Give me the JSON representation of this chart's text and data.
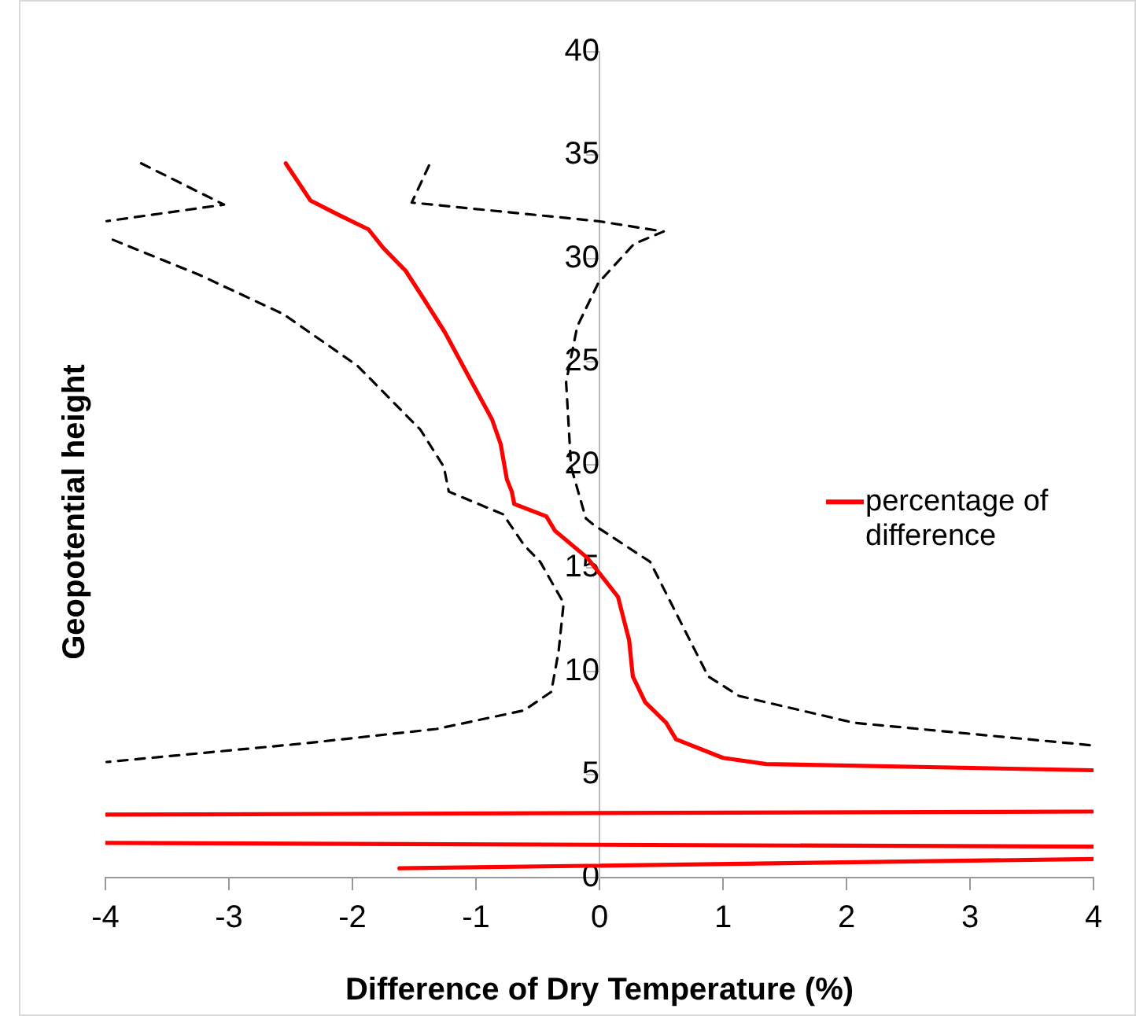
{
  "chart_data": {
    "type": "line",
    "xlabel": "Difference of Dry Temperature (%)",
    "ylabel": "Geopotential height",
    "xlim": [
      -4,
      4
    ],
    "xticks": [
      -4,
      -3,
      -2,
      -1,
      0,
      1,
      2,
      3,
      4
    ],
    "ylim": [
      0,
      40
    ],
    "yticks": [
      0,
      5,
      10,
      15,
      20,
      25,
      30,
      35,
      40
    ],
    "grid": false,
    "legend": "right",
    "marker": "none",
    "series": [
      {
        "name": "percentage of difference",
        "color": "#ff0000",
        "line_style": "solid",
        "x": [
          -2.54,
          -2.34,
          -2.11,
          -1.87,
          -1.75,
          -1.57,
          -1.44,
          -1.25,
          -1.07,
          -0.87,
          -0.8,
          -0.75,
          -0.71,
          -0.69,
          -0.43,
          -0.36,
          -0.1,
          0.15,
          0.24,
          0.27,
          0.37,
          0.54,
          0.62,
          1.0,
          1.35,
          4.0
        ],
        "values": [
          34.6,
          32.8,
          32.1,
          31.4,
          30.5,
          29.4,
          28.2,
          26.4,
          24.4,
          22.2,
          21.0,
          19.3,
          18.7,
          18.1,
          17.5,
          16.8,
          15.5,
          13.6,
          11.5,
          9.75,
          8.5,
          7.5,
          6.7,
          5.8,
          5.5,
          5.2
        ]
      },
      {
        "color": "#ff0000",
        "line_style": "solid",
        "x": [
          -4.0,
          4.0
        ],
        "values": [
          3.05,
          3.2
        ]
      },
      {
        "color": "#ff0000",
        "line_style": "solid",
        "x": [
          -4.0,
          4.0
        ],
        "values": [
          1.68,
          1.5
        ]
      },
      {
        "color": "#ff0000",
        "line_style": "solid",
        "x": [
          -1.62,
          4.0
        ],
        "values": [
          0.45,
          0.9
        ]
      },
      {
        "color": "#000000",
        "line_style": "dashed",
        "x": [
          -3.71,
          -3.04,
          -3.99
        ],
        "values": [
          34.6,
          32.6,
          31.8
        ]
      },
      {
        "color": "#000000",
        "line_style": "dashed",
        "x": [
          -3.94,
          -3.24,
          -2.56,
          -1.96,
          -1.45,
          -1.26,
          -1.22,
          -0.78,
          -0.61,
          -0.48,
          -0.29,
          -0.33,
          -0.39,
          -0.61,
          -1.32,
          -2.39,
          -3.99
        ],
        "values": [
          30.9,
          29.2,
          27.3,
          24.8,
          21.7,
          19.9,
          18.7,
          17.6,
          16.1,
          15.3,
          13.3,
          11.0,
          9.0,
          8.1,
          7.2,
          6.5,
          5.6
        ]
      },
      {
        "color": "#000000",
        "line_style": "dashed",
        "x": [
          -1.38,
          -1.52,
          -0.01,
          0.52,
          0.28,
          -0.01,
          -0.18,
          -0.27,
          -0.23,
          -0.11,
          -0.05,
          0.41,
          0.88,
          1.13,
          2.06,
          4.0
        ],
        "values": [
          34.5,
          32.7,
          31.8,
          31.3,
          30.7,
          28.8,
          26.7,
          24.0,
          19.9,
          17.4,
          17.1,
          15.3,
          9.75,
          8.8,
          7.5,
          6.4
        ]
      }
    ]
  }
}
